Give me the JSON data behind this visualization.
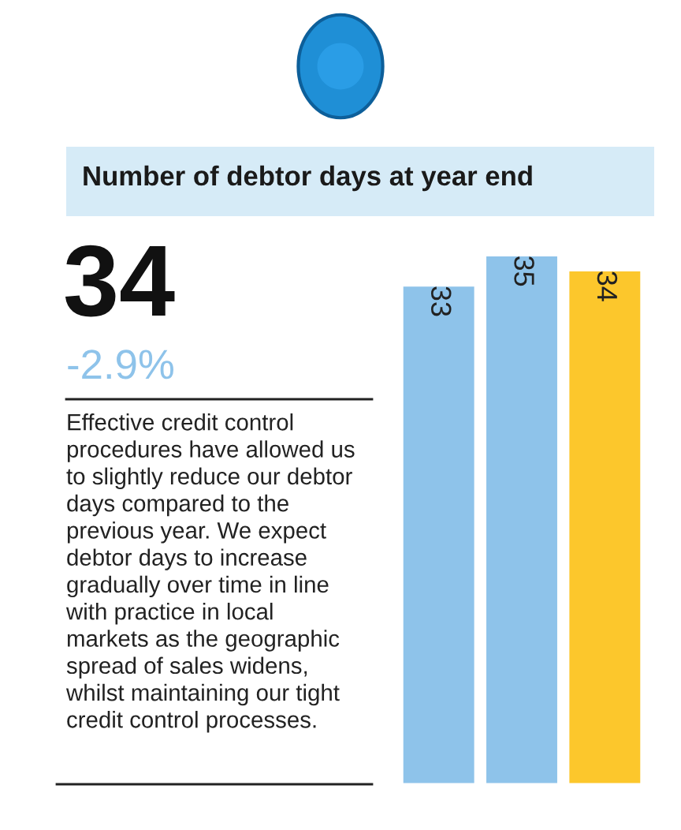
{
  "chart_data": {
    "type": "bar",
    "title": "Number of debtor days at year end",
    "categories": [
      null,
      null,
      null
    ],
    "values": [
      33,
      35,
      34
    ],
    "colors": [
      "#8ec3ea",
      "#8ec3ea",
      "#fcc72c"
    ],
    "data_labels": true,
    "annotations": [
      "34",
      "-2.9%",
      "Effective credit control\nprocedures have allowed us\nto slightly reduce our debtor\ndays compared to the\nprevious year. We expect\ndebtor days to increase\ngradually over time in line\nwith practice in local\nmarkets as the geographic\nspread of sales widens,\nwhilst maintaining our tight\ncredit control processes."
    ]
  }
}
